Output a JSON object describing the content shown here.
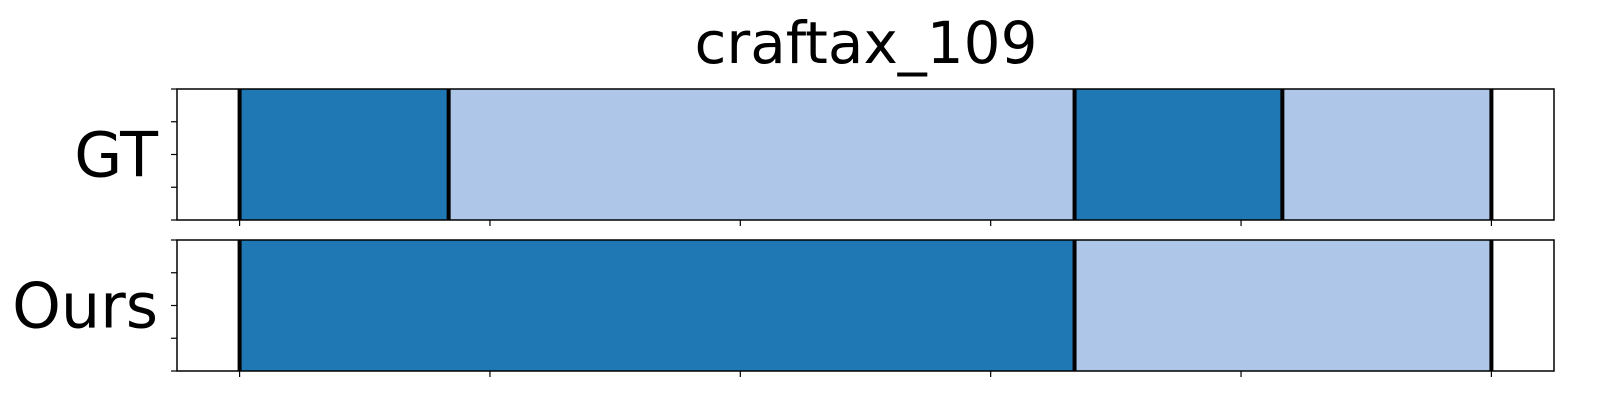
{
  "chart_data": {
    "type": "segmentation-timeline",
    "title": "craftax_109",
    "x_range": [
      -0.5,
      10.5
    ],
    "y_tick_count": 5,
    "x_tick_count": 6,
    "rows": [
      {
        "name": "GT",
        "boundaries": [
          0,
          1.67,
          6.67,
          8.33,
          10
        ],
        "segments": [
          {
            "start": 0,
            "end": 1.67,
            "color": "#1f77b4"
          },
          {
            "start": 1.67,
            "end": 6.67,
            "color": "#aec7e8"
          },
          {
            "start": 6.67,
            "end": 8.33,
            "color": "#1f77b4"
          },
          {
            "start": 8.33,
            "end": 10,
            "color": "#aec7e8"
          }
        ]
      },
      {
        "name": "Ours",
        "boundaries": [
          0,
          6.67,
          10
        ],
        "segments": [
          {
            "start": 0,
            "end": 6.67,
            "color": "#1f77b4"
          },
          {
            "start": 6.67,
            "end": 10,
            "color": "#aec7e8"
          }
        ]
      }
    ]
  }
}
